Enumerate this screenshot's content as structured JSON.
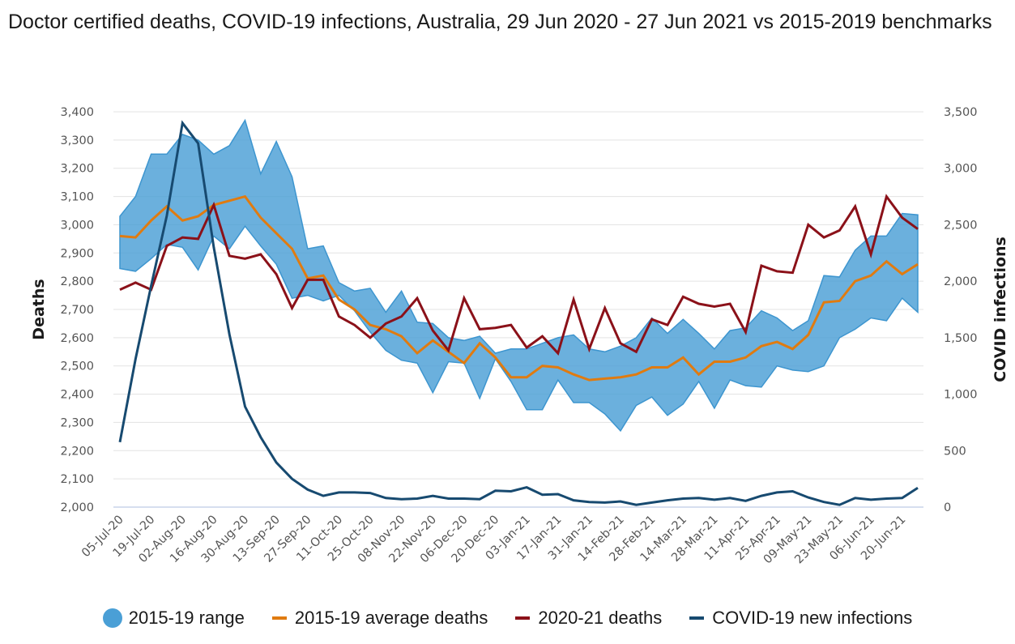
{
  "title": "Doctor certified deaths, COVID-19 infections, Australia, 29 Jun 2020 - 27 Jun 2021 vs 2015-2019 benchmarks",
  "colors": {
    "range_fill": "#4a9fd6",
    "range_stroke": "#3d95cf",
    "average": "#e07b10",
    "deaths_2020_21": "#8b1119",
    "covid": "#174a70",
    "grid": "#e3e3e3",
    "baseline": "#c8d4ea"
  },
  "legend": [
    {
      "key": "range",
      "label": "2015-19 range",
      "type": "area"
    },
    {
      "key": "average",
      "label": "2015-19 average deaths",
      "type": "line"
    },
    {
      "key": "deaths",
      "label": "2020-21 deaths",
      "type": "line"
    },
    {
      "key": "covid",
      "label": "COVID-19 new infections",
      "type": "line"
    }
  ],
  "chart_data": {
    "type": "line",
    "title": "Doctor certified deaths, COVID-19 infections, Australia, 29 Jun 2020 - 27 Jun 2021 vs 2015-2019 benchmarks",
    "xlabel": "",
    "ylabel": "Deaths",
    "y2label": "COVID infections",
    "ylim": [
      2000,
      3400
    ],
    "y2lim": [
      0,
      3500
    ],
    "yticks": [
      2000,
      2100,
      2200,
      2300,
      2400,
      2500,
      2600,
      2700,
      2800,
      2900,
      3000,
      3100,
      3200,
      3300,
      3400
    ],
    "y2ticks": [
      0,
      500,
      1000,
      1500,
      2000,
      2500,
      3000,
      3500
    ],
    "grid": true,
    "legend_position": "bottom",
    "x": [
      "05-Jul-20",
      "12-Jul-20",
      "19-Jul-20",
      "26-Jul-20",
      "02-Aug-20",
      "09-Aug-20",
      "16-Aug-20",
      "23-Aug-20",
      "30-Aug-20",
      "06-Sep-20",
      "13-Sep-20",
      "20-Sep-20",
      "27-Sep-20",
      "04-Oct-20",
      "11-Oct-20",
      "18-Oct-20",
      "25-Oct-20",
      "01-Nov-20",
      "08-Nov-20",
      "15-Nov-20",
      "22-Nov-20",
      "29-Nov-20",
      "06-Dec-20",
      "13-Dec-20",
      "20-Dec-20",
      "27-Dec-20",
      "03-Jan-21",
      "10-Jan-21",
      "17-Jan-21",
      "24-Jan-21",
      "31-Jan-21",
      "07-Feb-21",
      "14-Feb-21",
      "21-Feb-21",
      "28-Feb-21",
      "07-Mar-21",
      "14-Mar-21",
      "21-Mar-21",
      "28-Mar-21",
      "04-Apr-21",
      "11-Apr-21",
      "18-Apr-21",
      "25-Apr-21",
      "02-May-21",
      "09-May-21",
      "16-May-21",
      "23-May-21",
      "30-May-21",
      "06-Jun-21",
      "13-Jun-21",
      "20-Jun-21",
      "27-Jun-21"
    ],
    "tick_labels": [
      "05-Jul-20",
      "19-Jul-20",
      "02-Aug-20",
      "16-Aug-20",
      "30-Aug-20",
      "13-Sep-20",
      "27-Sep-20",
      "11-Oct-20",
      "25-Oct-20",
      "08-Nov-20",
      "22-Nov-20",
      "06-Dec-20",
      "20-Dec-20",
      "03-Jan-21",
      "17-Jan-21",
      "31-Jan-21",
      "14-Feb-21",
      "28-Feb-21",
      "14-Mar-21",
      "28-Mar-21",
      "11-Apr-21",
      "25-Apr-21",
      "09-May-21",
      "23-May-21",
      "06-Jun-21",
      "20-Jun-21"
    ],
    "series": [
      {
        "name": "2015-19 range",
        "type": "area",
        "axis": "left",
        "upper": [
          3030,
          3100,
          3250,
          3250,
          3320,
          3300,
          3250,
          3280,
          3370,
          3180,
          3295,
          3170,
          2915,
          2925,
          2795,
          2765,
          2775,
          2690,
          2765,
          2655,
          2650,
          2600,
          2590,
          2605,
          2545,
          2560,
          2560,
          2580,
          2600,
          2610,
          2560,
          2550,
          2570,
          2600,
          2670,
          2615,
          2665,
          2615,
          2560,
          2625,
          2635,
          2695,
          2670,
          2625,
          2660,
          2820,
          2815,
          2910,
          2960,
          2960,
          3040,
          3035
        ],
        "lower": [
          2845,
          2835,
          2880,
          2930,
          2920,
          2840,
          2960,
          2915,
          2995,
          2925,
          2860,
          2740,
          2750,
          2730,
          2750,
          2695,
          2620,
          2555,
          2520,
          2510,
          2405,
          2515,
          2510,
          2385,
          2525,
          2445,
          2345,
          2345,
          2450,
          2370,
          2370,
          2330,
          2270,
          2360,
          2390,
          2325,
          2365,
          2445,
          2350,
          2450,
          2430,
          2425,
          2500,
          2485,
          2480,
          2500,
          2600,
          2630,
          2670,
          2660,
          2740,
          2690
        ]
      },
      {
        "name": "2015-19 average deaths",
        "type": "line",
        "axis": "left",
        "values": [
          2960,
          2955,
          3015,
          3065,
          3015,
          3030,
          3070,
          3085,
          3100,
          3025,
          2970,
          2915,
          2810,
          2820,
          2735,
          2700,
          2645,
          2630,
          2605,
          2545,
          2590,
          2550,
          2510,
          2580,
          2530,
          2460,
          2460,
          2500,
          2495,
          2470,
          2450,
          2455,
          2460,
          2470,
          2495,
          2495,
          2530,
          2470,
          2515,
          2515,
          2530,
          2570,
          2585,
          2560,
          2610,
          2725,
          2730,
          2800,
          2820,
          2870,
          2825,
          2860
        ]
      },
      {
        "name": "2020-21 deaths",
        "type": "line",
        "axis": "left",
        "values": [
          2770,
          2795,
          2770,
          2925,
          2955,
          2950,
          3070,
          2890,
          2880,
          2895,
          2825,
          2705,
          2805,
          2805,
          2675,
          2645,
          2600,
          2650,
          2675,
          2740,
          2625,
          2555,
          2740,
          2630,
          2635,
          2645,
          2565,
          2605,
          2545,
          2735,
          2560,
          2705,
          2580,
          2550,
          2665,
          2645,
          2745,
          2720,
          2710,
          2720,
          2620,
          2855,
          2835,
          2830,
          3000,
          2955,
          2980,
          3065,
          2895,
          3100,
          3025,
          2985
        ]
      },
      {
        "name": "COVID-19 new infections",
        "type": "line",
        "axis": "right",
        "values": [
          575,
          1310,
          1960,
          2580,
          3400,
          3220,
          2300,
          1530,
          890,
          620,
          395,
          250,
          155,
          100,
          130,
          130,
          125,
          80,
          70,
          75,
          100,
          75,
          75,
          70,
          145,
          140,
          175,
          110,
          115,
          60,
          45,
          40,
          50,
          20,
          40,
          60,
          75,
          80,
          65,
          80,
          55,
          100,
          130,
          140,
          85,
          45,
          20,
          80,
          65,
          75,
          80,
          170
        ]
      }
    ]
  }
}
